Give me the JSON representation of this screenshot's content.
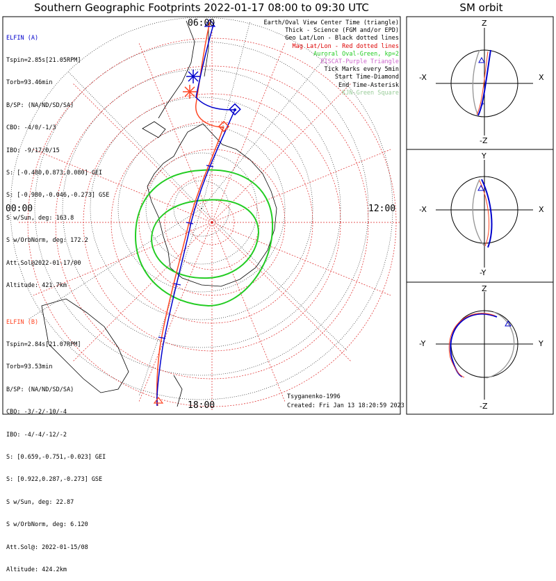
{
  "title": "Southern Geographic Footprints 2022-01-17 08:00 to 09:30 UTC",
  "sm_title": "SM orbit",
  "elfin_a": {
    "name": "ELFIN (A)",
    "color": "#0000cc",
    "lines": [
      "Tspin=2.85s[21.05RPM]",
      "Torb=93.46min",
      "B/SP: (NA/ND/SD/SA)",
      "CBO: -4/0/-1/3",
      "IBO: -9/17/0/15",
      "S: [-0.480,0.873,0.080] GEI",
      "S: [-0.980,-0.046,-0.273] GSE",
      "S w/Sun, deg: 163.8",
      "S w/OrbNorm, deg: 172.2",
      "Att.Sol@2022-01-17/00",
      "Altitude: 421.7km"
    ]
  },
  "elfin_b": {
    "name": "ELFIN (B)",
    "color": "#ff4422",
    "lines": [
      "Tspin=2.84s[21.07RPM]",
      "Torb=93.53min",
      "B/SP: (NA/ND/SD/SA)",
      "CBO: -3/-2/-10/-4",
      "IBO: -4/-4/-12/-2",
      "S: [0.659,-0.751,-0.023] GEI",
      "S: [0.922,0.287,-0.273] GSE",
      "S w/Sun, deg: 22.87",
      "S w/OrbNorm, deg: 6.120",
      "Att.Sol@: 2022-01-15/08",
      "Altitude: 424.2km"
    ]
  },
  "legend": [
    {
      "text": "Earth/Oval View Center Time (triangle)",
      "color": "#000000"
    },
    {
      "text": "Thick - Science (FGM and/or EPD)",
      "color": "#000000"
    },
    {
      "text": "Geo Lat/Lon - Black dotted lines",
      "color": "#000000"
    },
    {
      "text": "Mag Lat/Lon - Red dotted lines",
      "color": "#dd0000"
    },
    {
      "text": "Auroral Oval-Green, kp=2",
      "color": "#22cc22"
    },
    {
      "text": "EISCAT-Purple Triangle",
      "color": "#cc66cc"
    },
    {
      "text": "Tick Marks every 5min",
      "color": "#000000"
    },
    {
      "text": "Start Time-Diamond",
      "color": "#000000"
    },
    {
      "text": "End Time-Asterisk",
      "color": "#000000"
    },
    {
      "text": "KJN-Green Square",
      "color": "#99cc99"
    }
  ],
  "local_time_labels": {
    "top": "06:00",
    "left": "00:00",
    "right": "12:00",
    "bottom": "18:00"
  },
  "credit_model": "Tsyganenko-1996",
  "credit_created": "Created: Fri Jan 13 18:20:59 2023",
  "sm_panels": [
    {
      "top": "Z",
      "bottom": "-Z",
      "left": "-X",
      "right": "X"
    },
    {
      "top": "Y",
      "bottom": "-Y",
      "left": "-X",
      "right": "X"
    },
    {
      "top": "Z",
      "bottom": "-Z",
      "left": "-Y",
      "right": "Y"
    }
  ]
}
